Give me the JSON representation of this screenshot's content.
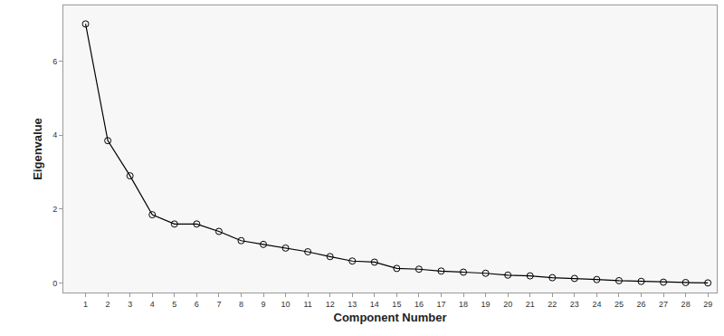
{
  "chart_data": {
    "type": "line",
    "x_label": "Component Number",
    "y_label": "Eigenvalue",
    "x": [
      1,
      2,
      3,
      4,
      5,
      6,
      7,
      8,
      9,
      10,
      11,
      12,
      13,
      14,
      15,
      16,
      17,
      18,
      19,
      20,
      21,
      22,
      23,
      24,
      25,
      26,
      27,
      28,
      29
    ],
    "values": [
      7.0,
      3.85,
      2.9,
      1.85,
      1.6,
      1.6,
      1.4,
      1.15,
      1.05,
      0.95,
      0.85,
      0.72,
      0.6,
      0.57,
      0.4,
      0.38,
      0.33,
      0.3,
      0.27,
      0.22,
      0.2,
      0.15,
      0.13,
      0.1,
      0.07,
      0.05,
      0.03,
      0.02,
      0.01
    ],
    "color": "#000000",
    "marker": "circle-open",
    "line_style": "solid",
    "xlim": [
      0,
      29.4
    ],
    "xticks": [
      1,
      2,
      3,
      4,
      5,
      6,
      7,
      8,
      9,
      10,
      11,
      12,
      13,
      14,
      15,
      16,
      17,
      18,
      19,
      20,
      21,
      22,
      23,
      24,
      25,
      26,
      27,
      28,
      29
    ],
    "ylim": [
      -0.25,
      7.5
    ],
    "yticks": [
      0,
      2,
      4,
      6
    ],
    "grid": false
  }
}
